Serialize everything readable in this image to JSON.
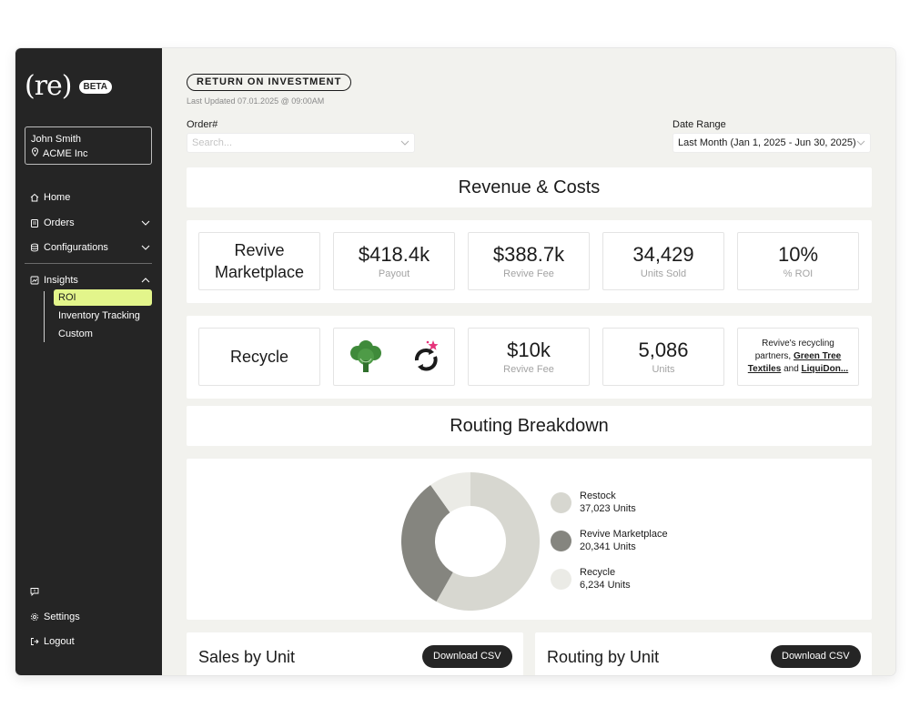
{
  "sidebar": {
    "logo": "(re)",
    "badge": "BETA",
    "user_name": "John Smith",
    "org_name": "ACME Inc",
    "nav": {
      "home": "Home",
      "orders": "Orders",
      "configurations": "Configurations",
      "insights": "Insights"
    },
    "sub": {
      "roi": "ROI",
      "inventory": "Inventory Tracking",
      "custom": "Custom"
    },
    "settings": "Settings",
    "logout": "Logout",
    "active_color": "#e3f58b"
  },
  "header": {
    "pill": "RETURN ON INVESTMENT",
    "updated": "Last Updated 07.01.2025 @ 09:00AM"
  },
  "filters": {
    "order_label": "Order#",
    "order_placeholder": "Search...",
    "date_label": "Date Range",
    "date_value": "Last Month (Jan 1, 2025 - Jun 30, 2025)"
  },
  "revenue": {
    "title": "Revenue & Costs",
    "marketplace": {
      "label": "Revive Marketplace",
      "payout_value": "$418.4k",
      "payout_label": "Payout",
      "fee_value": "$388.7k",
      "fee_label": "Revive Fee",
      "units_value": "34,429",
      "units_label": "Units Sold",
      "roi_value": "10%",
      "roi_label": "% ROI"
    },
    "recycle": {
      "label": "Recycle",
      "fee_value": "$10k",
      "fee_label": "Revive Fee",
      "units_value": "5,086",
      "units_label": "Units",
      "partners_prefix": "Revive's recycling partners,",
      "partner_1": "Green Tree Textiles",
      "partners_and": "and",
      "partner_2": "LiquiDon..."
    }
  },
  "routing": {
    "title": "Routing Breakdown",
    "legend": [
      {
        "name": "Restock",
        "units": "37,023 Units",
        "color": "#d7d7d0"
      },
      {
        "name": "Revive Marketplace",
        "units": "20,341 Units",
        "color": "#85857f"
      },
      {
        "name": "Recycle",
        "units": "6,234 Units",
        "color": "#ebebe6"
      }
    ],
    "values": [
      37023,
      20341,
      6234
    ]
  },
  "bottom": {
    "sales_title": "Sales by Unit",
    "routing_title": "Routing by Unit",
    "download": "Download CSV"
  }
}
